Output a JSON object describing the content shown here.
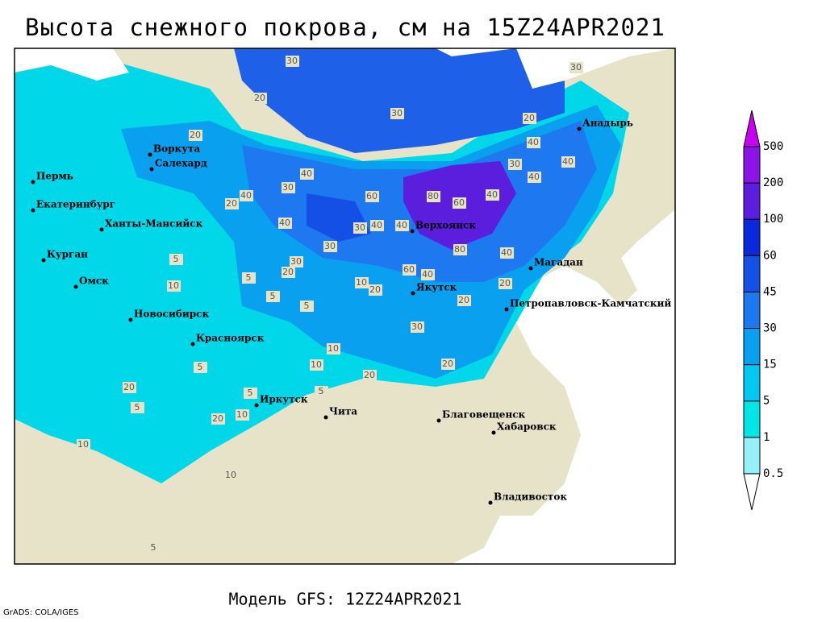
{
  "title": "Высота снежного покрова, см на 15Z24APR2021",
  "model": "Модель GFS: 12Z24APR2021",
  "credit": "GrADS: COLA/IGES",
  "legend": {
    "levels": [
      0.5,
      1,
      5,
      15,
      30,
      45,
      60,
      100,
      200,
      500
    ],
    "colors": [
      "#96f0fa",
      "#00e6e6",
      "#00c8f0",
      "#0aa0f0",
      "#1e78f0",
      "#1450e6",
      "#0a28dc",
      "#5a1edc",
      "#8c14e6",
      "#c800f0"
    ]
  },
  "cities": [
    "Воркута",
    "Салехард",
    "Пермь",
    "Екатеринбург",
    "Ханты-Мансийск",
    "Курган",
    "Омск",
    "Новосибирск",
    "Красноярск",
    "Иркутск",
    "Чита",
    "Верхоянск",
    "Якутск",
    "Магадан",
    "Петропавловск-Камчатский",
    "Анадырь",
    "Благовещенск",
    "Хабаровск",
    "Владивосток"
  ],
  "contour_labels": [
    30,
    20,
    30,
    20,
    30,
    20,
    40,
    30,
    40,
    40,
    60,
    80,
    60,
    40,
    40,
    30,
    40,
    20,
    40,
    40,
    30,
    40,
    80,
    40,
    30,
    30,
    60,
    40,
    10,
    20,
    5,
    5,
    5,
    10,
    20,
    30,
    20,
    20,
    10,
    10,
    20,
    20,
    5,
    5,
    10,
    5,
    5,
    20,
    10,
    20,
    5,
    10,
    5
  ]
}
